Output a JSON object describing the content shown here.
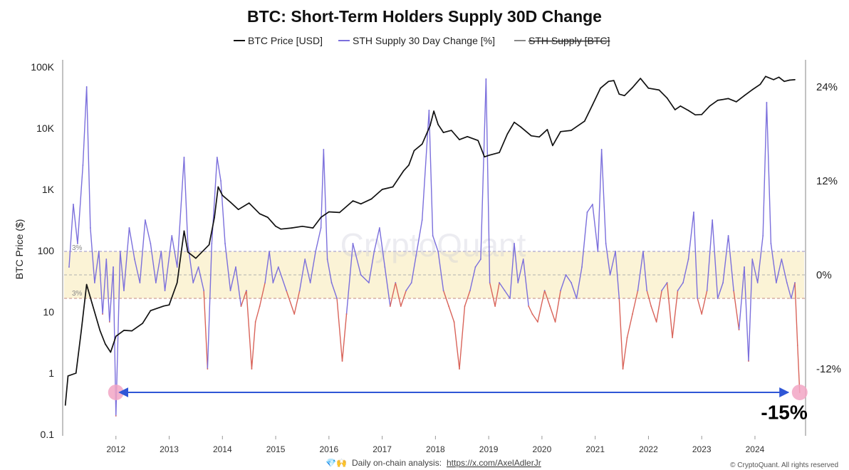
{
  "chart_data": {
    "type": "line",
    "title": "BTC: Short-Term Holders Supply 30D Change",
    "legend": [
      {
        "label": "BTC Price [USD]",
        "color": "#111111",
        "hidden": false
      },
      {
        "label": "STH Supply 30 Day Change [%]",
        "color": "#7b6fdc",
        "hidden": false
      },
      {
        "label": "STH Supply [BTC]",
        "color": "#888888",
        "hidden": true
      }
    ],
    "legend_position": "top-center",
    "ylabel_left": "BTC Price ($)",
    "y_left_scale": "log",
    "y_left_ticks": [
      "100K",
      "10K",
      "1K",
      "100",
      "10",
      "1",
      "0.1"
    ],
    "y_left_tick_values": [
      100000,
      10000,
      1000,
      100,
      10,
      1,
      0.1
    ],
    "y_right_ticks": [
      "24%",
      "12%",
      "0%",
      "-12%"
    ],
    "y_right_tick_values": [
      24,
      12,
      0,
      -12
    ],
    "x_ticks": [
      "2012",
      "2013",
      "2014",
      "2015",
      "2016",
      "2017",
      "2018",
      "2019",
      "2020",
      "2021",
      "2022",
      "2023",
      "2024"
    ],
    "xlim": [
      2011.0,
      2024.95
    ],
    "band": {
      "upper": 3,
      "lower": -3,
      "upper_label": "3%",
      "lower_label": "3%",
      "color": "#fbf3d6"
    },
    "series": [
      {
        "name": "BTC Price [USD]",
        "axis": "left",
        "color": "#111111",
        "points": [
          [
            2011.05,
            0.3
          ],
          [
            2011.1,
            0.9
          ],
          [
            2011.25,
            1.0
          ],
          [
            2011.35,
            5
          ],
          [
            2011.45,
            28
          ],
          [
            2011.55,
            14
          ],
          [
            2011.7,
            5
          ],
          [
            2011.8,
            3
          ],
          [
            2011.9,
            2.2
          ],
          [
            2012.0,
            4
          ],
          [
            2012.15,
            5
          ],
          [
            2012.3,
            4.9
          ],
          [
            2012.5,
            6.5
          ],
          [
            2012.65,
            10.5
          ],
          [
            2012.9,
            12.5
          ],
          [
            2013.0,
            13
          ],
          [
            2013.15,
            30
          ],
          [
            2013.28,
            210
          ],
          [
            2013.35,
            95
          ],
          [
            2013.5,
            75
          ],
          [
            2013.75,
            125
          ],
          [
            2013.85,
            350
          ],
          [
            2013.92,
            1100
          ],
          [
            2014.0,
            800
          ],
          [
            2014.15,
            620
          ],
          [
            2014.3,
            470
          ],
          [
            2014.5,
            600
          ],
          [
            2014.7,
            400
          ],
          [
            2014.85,
            350
          ],
          [
            2015.0,
            250
          ],
          [
            2015.1,
            225
          ],
          [
            2015.3,
            235
          ],
          [
            2015.5,
            250
          ],
          [
            2015.7,
            235
          ],
          [
            2015.85,
            350
          ],
          [
            2016.0,
            430
          ],
          [
            2016.2,
            420
          ],
          [
            2016.45,
            650
          ],
          [
            2016.6,
            580
          ],
          [
            2016.8,
            700
          ],
          [
            2017.0,
            1000
          ],
          [
            2017.2,
            1100
          ],
          [
            2017.4,
            2000
          ],
          [
            2017.5,
            2500
          ],
          [
            2017.6,
            4300
          ],
          [
            2017.75,
            5500
          ],
          [
            2017.9,
            11000
          ],
          [
            2017.97,
            19000
          ],
          [
            2018.05,
            11500
          ],
          [
            2018.15,
            8500
          ],
          [
            2018.3,
            9200
          ],
          [
            2018.45,
            6500
          ],
          [
            2018.6,
            7300
          ],
          [
            2018.8,
            6300
          ],
          [
            2018.92,
            3400
          ],
          [
            2019.0,
            3600
          ],
          [
            2019.2,
            4000
          ],
          [
            2019.35,
            8000
          ],
          [
            2019.48,
            12500
          ],
          [
            2019.6,
            10500
          ],
          [
            2019.8,
            7500
          ],
          [
            2019.95,
            7200
          ],
          [
            2020.1,
            9500
          ],
          [
            2020.2,
            5200
          ],
          [
            2020.35,
            8800
          ],
          [
            2020.55,
            9200
          ],
          [
            2020.8,
            13000
          ],
          [
            2020.95,
            24000
          ],
          [
            2021.1,
            45000
          ],
          [
            2021.25,
            58000
          ],
          [
            2021.35,
            60000
          ],
          [
            2021.45,
            36000
          ],
          [
            2021.55,
            34000
          ],
          [
            2021.7,
            46000
          ],
          [
            2021.85,
            65000
          ],
          [
            2022.0,
            45000
          ],
          [
            2022.2,
            42000
          ],
          [
            2022.35,
            31000
          ],
          [
            2022.5,
            20000
          ],
          [
            2022.6,
            23000
          ],
          [
            2022.75,
            19500
          ],
          [
            2022.88,
            16500
          ],
          [
            2023.0,
            16700
          ],
          [
            2023.15,
            23000
          ],
          [
            2023.3,
            28500
          ],
          [
            2023.5,
            30500
          ],
          [
            2023.65,
            27000
          ],
          [
            2023.8,
            34000
          ],
          [
            2023.95,
            42500
          ],
          [
            2024.1,
            52000
          ],
          [
            2024.2,
            70000
          ],
          [
            2024.35,
            62000
          ],
          [
            2024.45,
            68000
          ],
          [
            2024.55,
            58000
          ],
          [
            2024.65,
            61000
          ],
          [
            2024.75,
            62000
          ]
        ]
      },
      {
        "name": "STH Supply 30 Day Change [%]",
        "axis": "right",
        "color": "#7b6fdc",
        "color_below_band": "#d9645a",
        "points": [
          [
            2011.12,
            1
          ],
          [
            2011.2,
            9
          ],
          [
            2011.28,
            4
          ],
          [
            2011.38,
            14
          ],
          [
            2011.45,
            24
          ],
          [
            2011.52,
            6
          ],
          [
            2011.6,
            -1
          ],
          [
            2011.68,
            3
          ],
          [
            2011.75,
            -5
          ],
          [
            2011.82,
            2
          ],
          [
            2011.88,
            -6
          ],
          [
            2011.95,
            1
          ],
          [
            2012.0,
            -18
          ],
          [
            2012.08,
            3
          ],
          [
            2012.15,
            -2
          ],
          [
            2012.25,
            6
          ],
          [
            2012.35,
            2
          ],
          [
            2012.45,
            -1
          ],
          [
            2012.55,
            7
          ],
          [
            2012.65,
            4
          ],
          [
            2012.75,
            -1
          ],
          [
            2012.85,
            3
          ],
          [
            2012.92,
            -2
          ],
          [
            2013.05,
            5
          ],
          [
            2013.15,
            1
          ],
          [
            2013.28,
            15
          ],
          [
            2013.35,
            4
          ],
          [
            2013.45,
            -1
          ],
          [
            2013.55,
            1
          ],
          [
            2013.65,
            -2
          ],
          [
            2013.72,
            -12
          ],
          [
            2013.8,
            4
          ],
          [
            2013.9,
            15
          ],
          [
            2013.97,
            12
          ],
          [
            2014.05,
            4
          ],
          [
            2014.15,
            -2
          ],
          [
            2014.25,
            1
          ],
          [
            2014.35,
            -4
          ],
          [
            2014.45,
            -2
          ],
          [
            2014.55,
            -12
          ],
          [
            2014.62,
            -6
          ],
          [
            2014.7,
            -4
          ],
          [
            2014.8,
            -1
          ],
          [
            2014.88,
            3
          ],
          [
            2014.95,
            -1
          ],
          [
            2015.05,
            1
          ],
          [
            2015.2,
            -2
          ],
          [
            2015.35,
            -5
          ],
          [
            2015.45,
            -2
          ],
          [
            2015.55,
            2
          ],
          [
            2015.65,
            -1
          ],
          [
            2015.75,
            3
          ],
          [
            2015.85,
            6
          ],
          [
            2015.9,
            16
          ],
          [
            2015.97,
            2
          ],
          [
            2016.05,
            -1
          ],
          [
            2016.15,
            -3
          ],
          [
            2016.25,
            -11
          ],
          [
            2016.33,
            -5
          ],
          [
            2016.45,
            4
          ],
          [
            2016.6,
            0
          ],
          [
            2016.75,
            -1
          ],
          [
            2016.85,
            3
          ],
          [
            2016.95,
            6
          ],
          [
            2017.05,
            1
          ],
          [
            2017.15,
            -4
          ],
          [
            2017.25,
            -1
          ],
          [
            2017.35,
            -4
          ],
          [
            2017.45,
            -2
          ],
          [
            2017.55,
            -1
          ],
          [
            2017.65,
            3
          ],
          [
            2017.75,
            7
          ],
          [
            2017.88,
            21
          ],
          [
            2017.95,
            5
          ],
          [
            2018.05,
            3
          ],
          [
            2018.15,
            -2
          ],
          [
            2018.25,
            -4
          ],
          [
            2018.35,
            -6
          ],
          [
            2018.45,
            -12
          ],
          [
            2018.55,
            -4
          ],
          [
            2018.65,
            -2
          ],
          [
            2018.75,
            1
          ],
          [
            2018.85,
            2
          ],
          [
            2018.95,
            25
          ],
          [
            2019.02,
            -1
          ],
          [
            2019.12,
            -4
          ],
          [
            2019.2,
            -1
          ],
          [
            2019.3,
            -2
          ],
          [
            2019.4,
            -3
          ],
          [
            2019.48,
            4
          ],
          [
            2019.55,
            -1
          ],
          [
            2019.65,
            2
          ],
          [
            2019.75,
            -4
          ],
          [
            2019.82,
            -5
          ],
          [
            2019.92,
            -6
          ],
          [
            2020.05,
            -2
          ],
          [
            2020.15,
            -4
          ],
          [
            2020.25,
            -6
          ],
          [
            2020.35,
            -2
          ],
          [
            2020.45,
            0
          ],
          [
            2020.55,
            -1
          ],
          [
            2020.65,
            -3
          ],
          [
            2020.75,
            1
          ],
          [
            2020.85,
            8
          ],
          [
            2020.95,
            9
          ],
          [
            2021.05,
            3
          ],
          [
            2021.12,
            16
          ],
          [
            2021.2,
            4
          ],
          [
            2021.28,
            0
          ],
          [
            2021.38,
            3
          ],
          [
            2021.45,
            -3
          ],
          [
            2021.52,
            -12
          ],
          [
            2021.6,
            -8
          ],
          [
            2021.7,
            -5
          ],
          [
            2021.8,
            -2
          ],
          [
            2021.9,
            3
          ],
          [
            2021.97,
            -2
          ],
          [
            2022.05,
            -4
          ],
          [
            2022.15,
            -6
          ],
          [
            2022.25,
            -2
          ],
          [
            2022.35,
            -1
          ],
          [
            2022.45,
            -8
          ],
          [
            2022.55,
            -2
          ],
          [
            2022.65,
            -1
          ],
          [
            2022.75,
            2
          ],
          [
            2022.85,
            8
          ],
          [
            2022.92,
            -3
          ],
          [
            2023.0,
            -5
          ],
          [
            2023.1,
            -2
          ],
          [
            2023.2,
            7
          ],
          [
            2023.3,
            -3
          ],
          [
            2023.4,
            -1
          ],
          [
            2023.5,
            5
          ],
          [
            2023.6,
            -2
          ],
          [
            2023.7,
            -7
          ],
          [
            2023.8,
            1
          ],
          [
            2023.88,
            -11
          ],
          [
            2023.95,
            2
          ],
          [
            2024.05,
            -1
          ],
          [
            2024.15,
            5
          ],
          [
            2024.22,
            22
          ],
          [
            2024.3,
            4
          ],
          [
            2024.4,
            -1
          ],
          [
            2024.5,
            2
          ],
          [
            2024.6,
            -1
          ],
          [
            2024.68,
            -3
          ],
          [
            2024.75,
            -1
          ],
          [
            2024.8,
            -9
          ],
          [
            2024.84,
            -15
          ]
        ]
      }
    ],
    "annotations": [
      {
        "type": "arrow",
        "from": [
          2012.0,
          -15
        ],
        "to": [
          2024.84,
          -15
        ],
        "color": "#2f56d6"
      },
      {
        "type": "marker",
        "at": [
          2012.0,
          -15
        ],
        "color": "#f2a6c4"
      },
      {
        "type": "marker",
        "at": [
          2024.84,
          -15
        ],
        "color": "#f2a6c4"
      },
      {
        "type": "text",
        "text": "-15%",
        "at": [
          2024.55,
          -17.5
        ]
      }
    ],
    "grid": false
  },
  "watermark": "CryptoQuant",
  "footer": {
    "icons": "💎🙌",
    "text": "Daily on-chain analysis:",
    "link": "https://x.com/AxelAdlerJr",
    "copyright": "© CryptoQuant. All rights reserved"
  }
}
